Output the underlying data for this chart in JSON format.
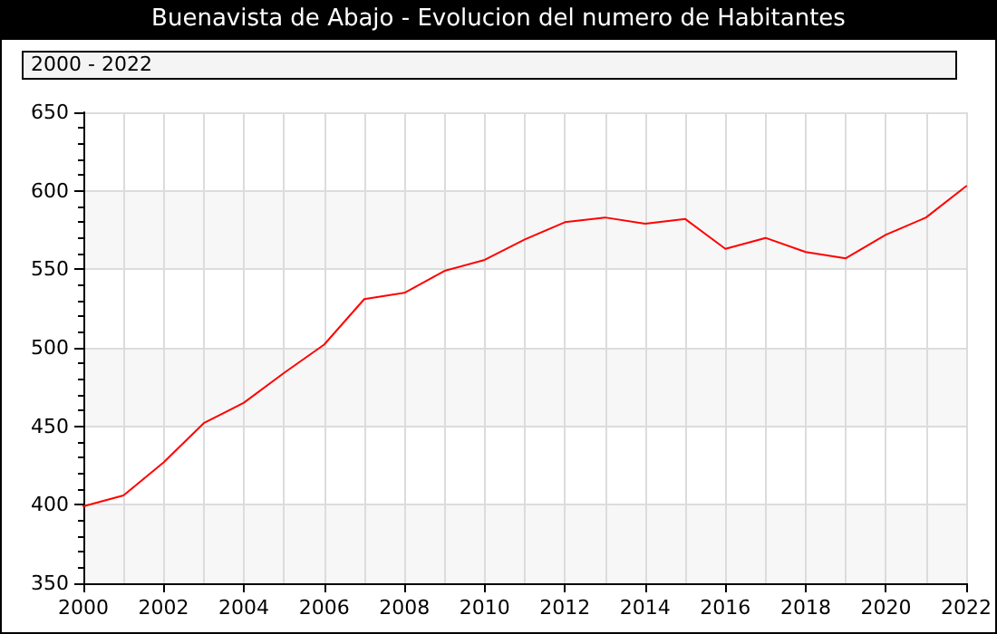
{
  "chart_data": {
    "type": "line",
    "title": "Buenavista de Abajo - Evolucion del numero de Habitantes",
    "annotations": [
      "2000 - 2022"
    ],
    "x": [
      2000,
      2001,
      2002,
      2003,
      2004,
      2005,
      2006,
      2007,
      2008,
      2009,
      2010,
      2011,
      2012,
      2013,
      2014,
      2015,
      2016,
      2017,
      2018,
      2019,
      2020,
      2021,
      2022
    ],
    "series": [
      {
        "color": "#ff0000",
        "values": [
          399,
          406,
          427,
          452,
          465,
          484,
          502,
          531,
          535,
          549,
          556,
          569,
          580,
          583,
          579,
          582,
          563,
          570,
          561,
          557,
          572,
          583,
          603
        ]
      }
    ],
    "xlim": [
      2000,
      2022
    ],
    "xticks": [
      2000,
      2002,
      2004,
      2006,
      2008,
      2010,
      2012,
      2014,
      2016,
      2018,
      2020,
      2022
    ],
    "ylim": [
      350,
      650
    ],
    "yticks": [
      350,
      400,
      450,
      500,
      550,
      600,
      650
    ],
    "grid": true,
    "marker": "none",
    "line_style": "solid"
  }
}
